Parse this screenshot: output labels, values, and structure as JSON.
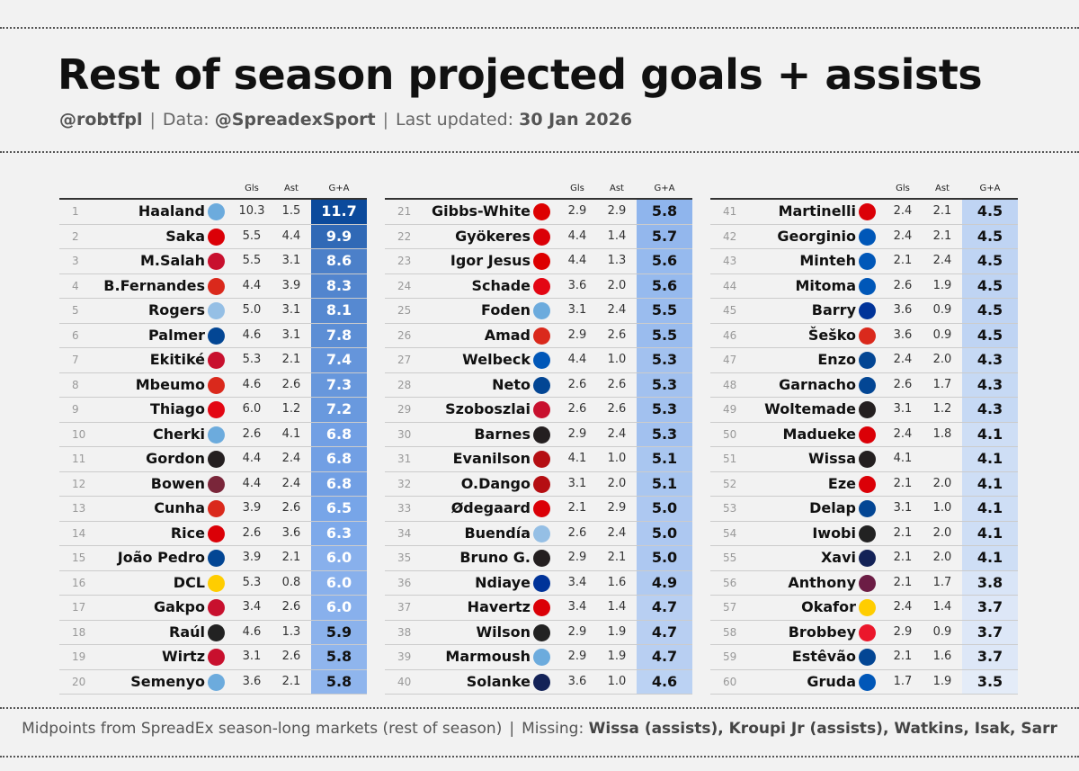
{
  "header": {
    "title": "Rest of season projected goals + assists",
    "author": "@robtfpl",
    "data_label": "Data:",
    "data_source": "@SpreadexSport",
    "updated_label": "Last updated:",
    "updated_date": "30 Jan 2026",
    "separator": "|"
  },
  "footer": {
    "note": "Midpoints from SpreadEx season-long markets (rest of season)",
    "separator": "|",
    "missing_label": "Missing:",
    "missing_players": "Wissa (assists), Kroupi Jr (assists), Watkins, Isak, Sarr"
  },
  "team_colors": {
    "MCI": "#6CABDD",
    "ARS": "#DB0007",
    "LIV": "#C8102E",
    "MUN": "#DA291C",
    "AVL": "#95BFE5",
    "CHE": "#034694",
    "BRE": "#E30613",
    "NEW": "#241F20",
    "WHU": "#7A263A",
    "LEE": "#FFCD00",
    "FUL": "#222222",
    "NFO": "#DD0000",
    "BHA": "#0057B8",
    "BOU": "#B50E12",
    "EVE": "#003399",
    "TOT": "#132257",
    "BUR": "#6C1D45",
    "SUN": "#EB172B"
  },
  "chart_data": {
    "type": "table",
    "title": "Rest of season projected goals + assists",
    "columns": [
      "",
      "",
      "Gls",
      "Ast",
      "G+A"
    ],
    "color_scale": {
      "min": 3.5,
      "max": 11.7,
      "low_color": "#e4ecf8",
      "mid_color": "#7aa7ea",
      "high_color": "#0b4a9c"
    },
    "rows": [
      {
        "rank": 1,
        "name": "Haaland",
        "team": "MCI",
        "gls": "10.3",
        "ast": "1.5",
        "ga": 11.7
      },
      {
        "rank": 2,
        "name": "Saka",
        "team": "ARS",
        "gls": "5.5",
        "ast": "4.4",
        "ga": 9.9
      },
      {
        "rank": 3,
        "name": "M.Salah",
        "team": "LIV",
        "gls": "5.5",
        "ast": "3.1",
        "ga": 8.6
      },
      {
        "rank": 4,
        "name": "B.Fernandes",
        "team": "MUN",
        "gls": "4.4",
        "ast": "3.9",
        "ga": 8.3
      },
      {
        "rank": 5,
        "name": "Rogers",
        "team": "AVL",
        "gls": "5.0",
        "ast": "3.1",
        "ga": 8.1
      },
      {
        "rank": 6,
        "name": "Palmer",
        "team": "CHE",
        "gls": "4.6",
        "ast": "3.1",
        "ga": 7.8
      },
      {
        "rank": 7,
        "name": "Ekitiké",
        "team": "LIV",
        "gls": "5.3",
        "ast": "2.1",
        "ga": 7.4
      },
      {
        "rank": 8,
        "name": "Mbeumo",
        "team": "MUN",
        "gls": "4.6",
        "ast": "2.6",
        "ga": 7.3
      },
      {
        "rank": 9,
        "name": "Thiago",
        "team": "BRE",
        "gls": "6.0",
        "ast": "1.2",
        "ga": 7.2
      },
      {
        "rank": 10,
        "name": "Cherki",
        "team": "MCI",
        "gls": "2.6",
        "ast": "4.1",
        "ga": 6.8
      },
      {
        "rank": 11,
        "name": "Gordon",
        "team": "NEW",
        "gls": "4.4",
        "ast": "2.4",
        "ga": 6.8
      },
      {
        "rank": 12,
        "name": "Bowen",
        "team": "WHU",
        "gls": "4.4",
        "ast": "2.4",
        "ga": 6.8
      },
      {
        "rank": 13,
        "name": "Cunha",
        "team": "MUN",
        "gls": "3.9",
        "ast": "2.6",
        "ga": 6.5
      },
      {
        "rank": 14,
        "name": "Rice",
        "team": "ARS",
        "gls": "2.6",
        "ast": "3.6",
        "ga": 6.3
      },
      {
        "rank": 15,
        "name": "João Pedro",
        "team": "CHE",
        "gls": "3.9",
        "ast": "2.1",
        "ga": 6.0
      },
      {
        "rank": 16,
        "name": "DCL",
        "team": "LEE",
        "gls": "5.3",
        "ast": "0.8",
        "ga": 6.0
      },
      {
        "rank": 17,
        "name": "Gakpo",
        "team": "LIV",
        "gls": "3.4",
        "ast": "2.6",
        "ga": 6.0
      },
      {
        "rank": 18,
        "name": "Raúl",
        "team": "FUL",
        "gls": "4.6",
        "ast": "1.3",
        "ga": 5.9
      },
      {
        "rank": 19,
        "name": "Wirtz",
        "team": "LIV",
        "gls": "3.1",
        "ast": "2.6",
        "ga": 5.8
      },
      {
        "rank": 20,
        "name": "Semenyo",
        "team": "MCI",
        "gls": "3.6",
        "ast": "2.1",
        "ga": 5.8
      },
      {
        "rank": 21,
        "name": "Gibbs-White",
        "team": "NFO",
        "gls": "2.9",
        "ast": "2.9",
        "ga": 5.8
      },
      {
        "rank": 22,
        "name": "Gyökeres",
        "team": "ARS",
        "gls": "4.4",
        "ast": "1.4",
        "ga": 5.7
      },
      {
        "rank": 23,
        "name": "Igor Jesus",
        "team": "NFO",
        "gls": "4.4",
        "ast": "1.3",
        "ga": 5.6
      },
      {
        "rank": 24,
        "name": "Schade",
        "team": "BRE",
        "gls": "3.6",
        "ast": "2.0",
        "ga": 5.6
      },
      {
        "rank": 25,
        "name": "Foden",
        "team": "MCI",
        "gls": "3.1",
        "ast": "2.4",
        "ga": 5.5
      },
      {
        "rank": 26,
        "name": "Amad",
        "team": "MUN",
        "gls": "2.9",
        "ast": "2.6",
        "ga": 5.5
      },
      {
        "rank": 27,
        "name": "Welbeck",
        "team": "BHA",
        "gls": "4.4",
        "ast": "1.0",
        "ga": 5.3
      },
      {
        "rank": 28,
        "name": "Neto",
        "team": "CHE",
        "gls": "2.6",
        "ast": "2.6",
        "ga": 5.3
      },
      {
        "rank": 29,
        "name": "Szoboszlai",
        "team": "LIV",
        "gls": "2.6",
        "ast": "2.6",
        "ga": 5.3
      },
      {
        "rank": 30,
        "name": "Barnes",
        "team": "NEW",
        "gls": "2.9",
        "ast": "2.4",
        "ga": 5.3
      },
      {
        "rank": 31,
        "name": "Evanilson",
        "team": "BOU",
        "gls": "4.1",
        "ast": "1.0",
        "ga": 5.1
      },
      {
        "rank": 32,
        "name": "O.Dango",
        "team": "BOU",
        "gls": "3.1",
        "ast": "2.0",
        "ga": 5.1
      },
      {
        "rank": 33,
        "name": "Ødegaard",
        "team": "ARS",
        "gls": "2.1",
        "ast": "2.9",
        "ga": 5.0
      },
      {
        "rank": 34,
        "name": "Buendía",
        "team": "AVL",
        "gls": "2.6",
        "ast": "2.4",
        "ga": 5.0
      },
      {
        "rank": 35,
        "name": "Bruno G.",
        "team": "NEW",
        "gls": "2.9",
        "ast": "2.1",
        "ga": 5.0
      },
      {
        "rank": 36,
        "name": "Ndiaye",
        "team": "EVE",
        "gls": "3.4",
        "ast": "1.6",
        "ga": 4.9
      },
      {
        "rank": 37,
        "name": "Havertz",
        "team": "ARS",
        "gls": "3.4",
        "ast": "1.4",
        "ga": 4.7
      },
      {
        "rank": 38,
        "name": "Wilson",
        "team": "FUL",
        "gls": "2.9",
        "ast": "1.9",
        "ga": 4.7
      },
      {
        "rank": 39,
        "name": "Marmoush",
        "team": "MCI",
        "gls": "2.9",
        "ast": "1.9",
        "ga": 4.7
      },
      {
        "rank": 40,
        "name": "Solanke",
        "team": "TOT",
        "gls": "3.6",
        "ast": "1.0",
        "ga": 4.6
      },
      {
        "rank": 41,
        "name": "Martinelli",
        "team": "ARS",
        "gls": "2.4",
        "ast": "2.1",
        "ga": 4.5
      },
      {
        "rank": 42,
        "name": "Georginio",
        "team": "BHA",
        "gls": "2.4",
        "ast": "2.1",
        "ga": 4.5
      },
      {
        "rank": 43,
        "name": "Minteh",
        "team": "BHA",
        "gls": "2.1",
        "ast": "2.4",
        "ga": 4.5
      },
      {
        "rank": 44,
        "name": "Mitoma",
        "team": "BHA",
        "gls": "2.6",
        "ast": "1.9",
        "ga": 4.5
      },
      {
        "rank": 45,
        "name": "Barry",
        "team": "EVE",
        "gls": "3.6",
        "ast": "0.9",
        "ga": 4.5
      },
      {
        "rank": 46,
        "name": "Šeško",
        "team": "MUN",
        "gls": "3.6",
        "ast": "0.9",
        "ga": 4.5
      },
      {
        "rank": 47,
        "name": "Enzo",
        "team": "CHE",
        "gls": "2.4",
        "ast": "2.0",
        "ga": 4.3
      },
      {
        "rank": 48,
        "name": "Garnacho",
        "team": "CHE",
        "gls": "2.6",
        "ast": "1.7",
        "ga": 4.3
      },
      {
        "rank": 49,
        "name": "Woltemade",
        "team": "NEW",
        "gls": "3.1",
        "ast": "1.2",
        "ga": 4.3
      },
      {
        "rank": 50,
        "name": "Madueke",
        "team": "ARS",
        "gls": "2.4",
        "ast": "1.8",
        "ga": 4.1
      },
      {
        "rank": 51,
        "name": "Wissa",
        "team": "NEW",
        "gls": "4.1",
        "ast": "",
        "ga": 4.1
      },
      {
        "rank": 52,
        "name": "Eze",
        "team": "ARS",
        "gls": "2.1",
        "ast": "2.0",
        "ga": 4.1
      },
      {
        "rank": 53,
        "name": "Delap",
        "team": "CHE",
        "gls": "3.1",
        "ast": "1.0",
        "ga": 4.1
      },
      {
        "rank": 54,
        "name": "Iwobi",
        "team": "FUL",
        "gls": "2.1",
        "ast": "2.0",
        "ga": 4.1
      },
      {
        "rank": 55,
        "name": "Xavi",
        "team": "TOT",
        "gls": "2.1",
        "ast": "2.0",
        "ga": 4.1
      },
      {
        "rank": 56,
        "name": "Anthony",
        "team": "BUR",
        "gls": "2.1",
        "ast": "1.7",
        "ga": 3.8
      },
      {
        "rank": 57,
        "name": "Okafor",
        "team": "LEE",
        "gls": "2.4",
        "ast": "1.4",
        "ga": 3.7
      },
      {
        "rank": 58,
        "name": "Brobbey",
        "team": "SUN",
        "gls": "2.9",
        "ast": "0.9",
        "ga": 3.7
      },
      {
        "rank": 59,
        "name": "Estêvão",
        "team": "CHE",
        "gls": "2.1",
        "ast": "1.6",
        "ga": 3.7
      },
      {
        "rank": 60,
        "name": "Gruda",
        "team": "BHA",
        "gls": "1.7",
        "ast": "1.9",
        "ga": 3.5
      }
    ]
  }
}
